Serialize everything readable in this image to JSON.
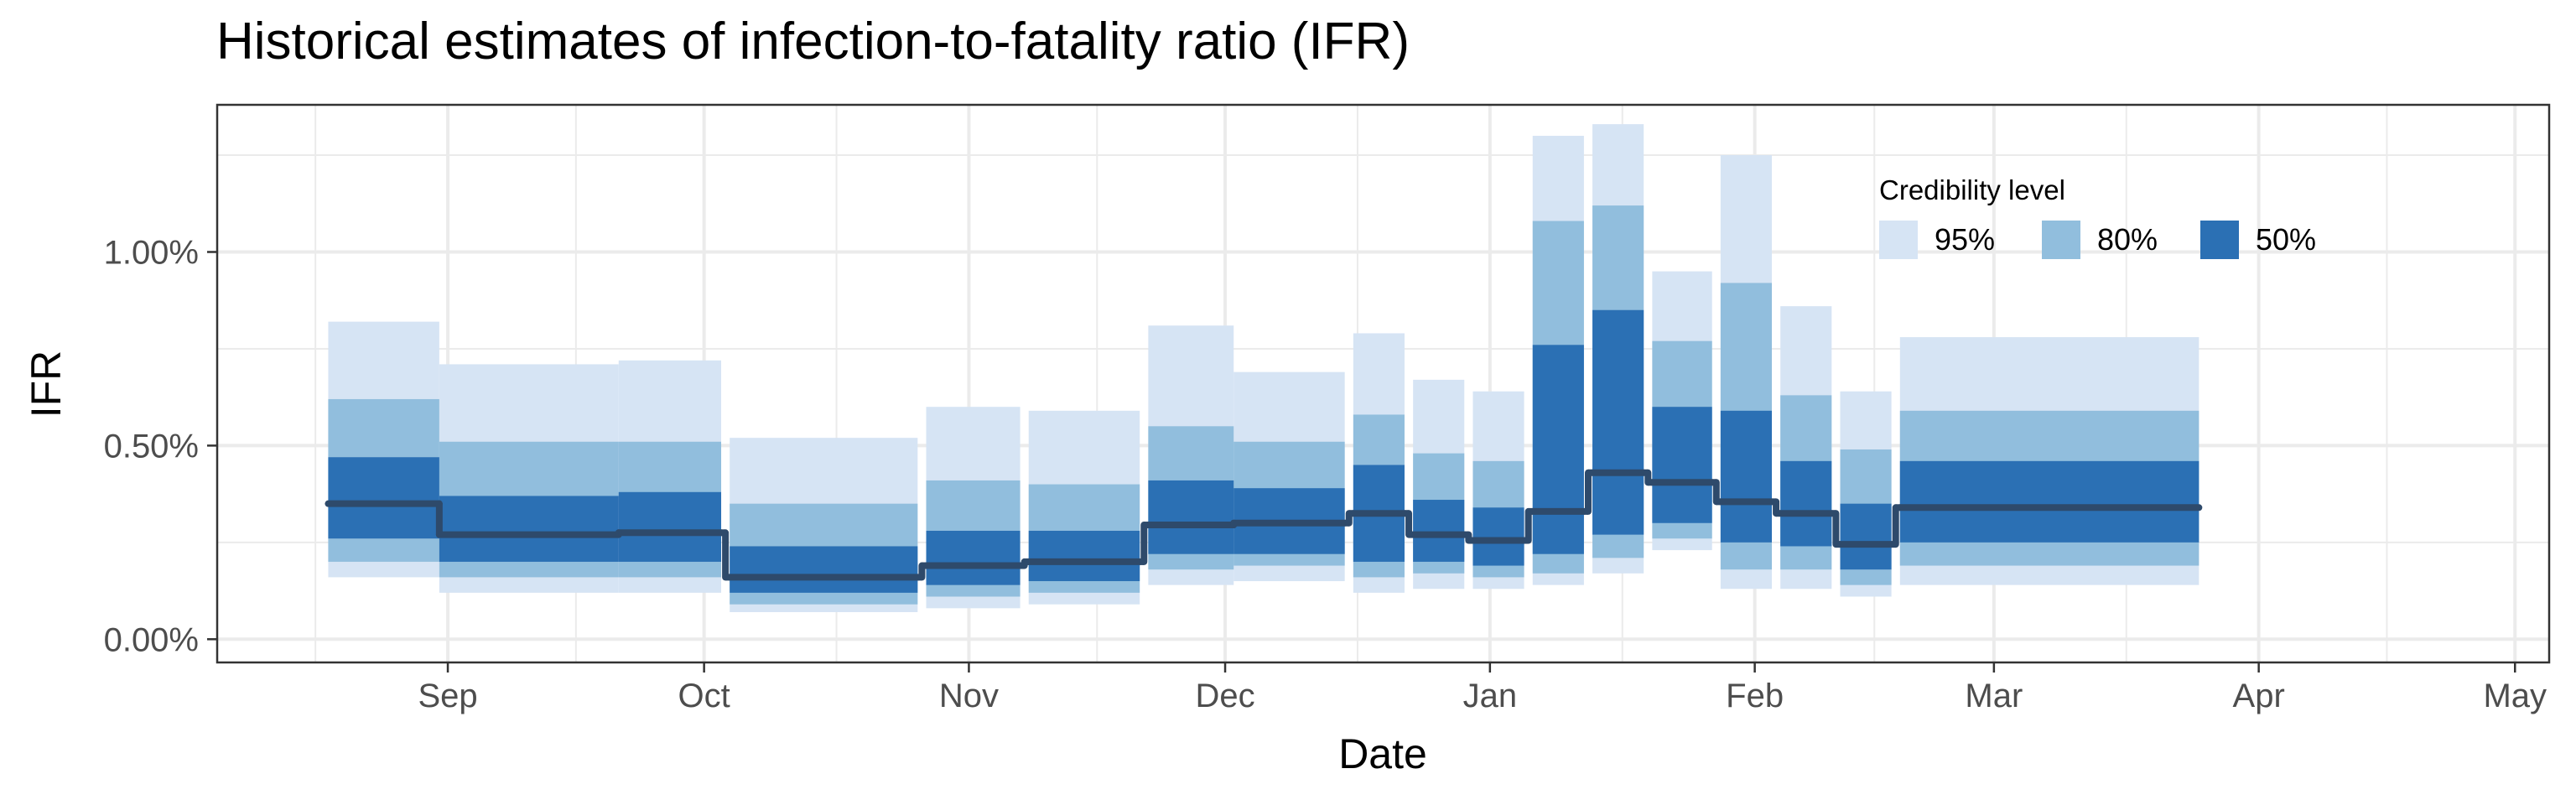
{
  "chart_data": {
    "type": "area",
    "title": "Historical estimates of infection-to-fatality ratio (IFR)",
    "xlabel": "Date",
    "ylabel": "IFR",
    "x_ticks": [
      {
        "date": "2020-09-01",
        "label": "Sep"
      },
      {
        "date": "2020-10-01",
        "label": "Oct"
      },
      {
        "date": "2020-11-01",
        "label": "Nov"
      },
      {
        "date": "2020-12-01",
        "label": "Dec"
      },
      {
        "date": "2021-01-01",
        "label": "Jan"
      },
      {
        "date": "2021-02-01",
        "label": "Feb"
      },
      {
        "date": "2021-03-01",
        "label": "Mar"
      },
      {
        "date": "2021-04-01",
        "label": "Apr"
      },
      {
        "date": "2021-05-01",
        "label": "May"
      }
    ],
    "y_ticks": [
      {
        "value": 0.0,
        "label": "0.00%"
      },
      {
        "value": 0.5,
        "label": "0.50%"
      },
      {
        "value": 1.0,
        "label": "1.00%"
      }
    ],
    "xlim": [
      "2020-08-05",
      "2021-05-05"
    ],
    "ylim": [
      -0.06,
      1.38
    ],
    "grid": true,
    "legend": {
      "title": "Credibility level",
      "position": "top-right",
      "items": [
        {
          "label": "95%",
          "color": "#d6e4f4"
        },
        {
          "label": "80%",
          "color": "#91bedd"
        },
        {
          "label": "50%",
          "color": "#2b70b4"
        }
      ]
    },
    "median_color": "#2e4a6b",
    "series": [
      {
        "start": "2020-08-18",
        "end": "2020-08-30",
        "median": 0.35,
        "ci95": [
          0.16,
          0.82
        ],
        "ci80": [
          0.2,
          0.62
        ],
        "ci50": [
          0.26,
          0.47
        ]
      },
      {
        "start": "2020-08-31",
        "end": "2020-09-20",
        "median": 0.27,
        "ci95": [
          0.12,
          0.71
        ],
        "ci80": [
          0.16,
          0.51
        ],
        "ci50": [
          0.2,
          0.37
        ]
      },
      {
        "start": "2020-09-21",
        "end": "2020-10-02",
        "median": 0.275,
        "ci95": [
          0.12,
          0.72
        ],
        "ci80": [
          0.16,
          0.51
        ],
        "ci50": [
          0.2,
          0.38
        ]
      },
      {
        "start": "2020-10-04",
        "end": "2020-10-25",
        "median": 0.16,
        "ci95": [
          0.07,
          0.52
        ],
        "ci80": [
          0.09,
          0.35
        ],
        "ci50": [
          0.12,
          0.24
        ]
      },
      {
        "start": "2020-10-27",
        "end": "2020-11/06",
        "median": 0.19,
        "ci95": [
          0.08,
          0.6
        ],
        "ci80": [
          0.11,
          0.41
        ],
        "ci50": [
          0.14,
          0.28
        ]
      },
      {
        "start": "2020-11-08",
        "end": "2020-11-20",
        "median": 0.2,
        "ci95": [
          0.09,
          0.59
        ],
        "ci80": [
          0.12,
          0.4
        ],
        "ci50": [
          0.15,
          0.28
        ]
      },
      {
        "start": "2020-11-22",
        "end": "2020-12-01",
        "median": 0.295,
        "ci95": [
          0.14,
          0.81
        ],
        "ci80": [
          0.18,
          0.55
        ],
        "ci50": [
          0.22,
          0.41
        ]
      },
      {
        "start": "2020-12-02",
        "end": "2020-12-14",
        "median": 0.3,
        "ci95": [
          0.15,
          0.69
        ],
        "ci80": [
          0.19,
          0.51
        ],
        "ci50": [
          0.22,
          0.39
        ]
      },
      {
        "start": "2020-12-16",
        "end": "2020-12-21",
        "median": 0.325,
        "ci95": [
          0.12,
          0.79
        ],
        "ci80": [
          0.16,
          0.58
        ],
        "ci50": [
          0.2,
          0.45
        ]
      },
      {
        "start": "2020-12-23",
        "end": "2020-12-28",
        "median": 0.27,
        "ci95": [
          0.13,
          0.67
        ],
        "ci80": [
          0.17,
          0.48
        ],
        "ci50": [
          0.2,
          0.36
        ]
      },
      {
        "start": "2020-12-30",
        "end": "2021-01-04",
        "median": 0.255,
        "ci95": [
          0.13,
          0.64
        ],
        "ci80": [
          0.16,
          0.46
        ],
        "ci50": [
          0.19,
          0.34
        ]
      },
      {
        "start": "2021-01-06",
        "end": "2021-01-11",
        "median": 0.33,
        "ci95": [
          0.14,
          1.3
        ],
        "ci80": [
          0.17,
          1.08
        ],
        "ci50": [
          0.22,
          0.76
        ]
      },
      {
        "start": "2021-01-13",
        "end": "2021-01-18",
        "median": 0.43,
        "ci95": [
          0.17,
          1.33
        ],
        "ci80": [
          0.21,
          1.12
        ],
        "ci50": [
          0.27,
          0.85
        ]
      },
      {
        "start": "2021-01-20",
        "end": "2021-01-26",
        "median": 0.405,
        "ci95": [
          0.23,
          0.95
        ],
        "ci80": [
          0.26,
          0.77
        ],
        "ci50": [
          0.3,
          0.6
        ]
      },
      {
        "start": "2021-01-28",
        "end": "2021-02-02",
        "median": 0.355,
        "ci95": [
          0.13,
          1.25
        ],
        "ci80": [
          0.18,
          0.92
        ],
        "ci50": [
          0.25,
          0.59
        ]
      },
      {
        "start": "2021-02-04",
        "end": "2021-02-09",
        "median": 0.325,
        "ci95": [
          0.13,
          0.86
        ],
        "ci80": [
          0.18,
          0.63
        ],
        "ci50": [
          0.24,
          0.46
        ]
      },
      {
        "start": "2021-02-11",
        "end": "2021-02-16",
        "median": 0.245,
        "ci95": [
          0.11,
          0.64
        ],
        "ci80": [
          0.14,
          0.49
        ],
        "ci50": [
          0.18,
          0.35
        ]
      },
      {
        "start": "2021-02-18",
        "end": "2021-03-24",
        "median": 0.34,
        "ci95": [
          0.14,
          0.78
        ],
        "ci80": [
          0.19,
          0.59
        ],
        "ci50": [
          0.25,
          0.46
        ]
      }
    ]
  }
}
